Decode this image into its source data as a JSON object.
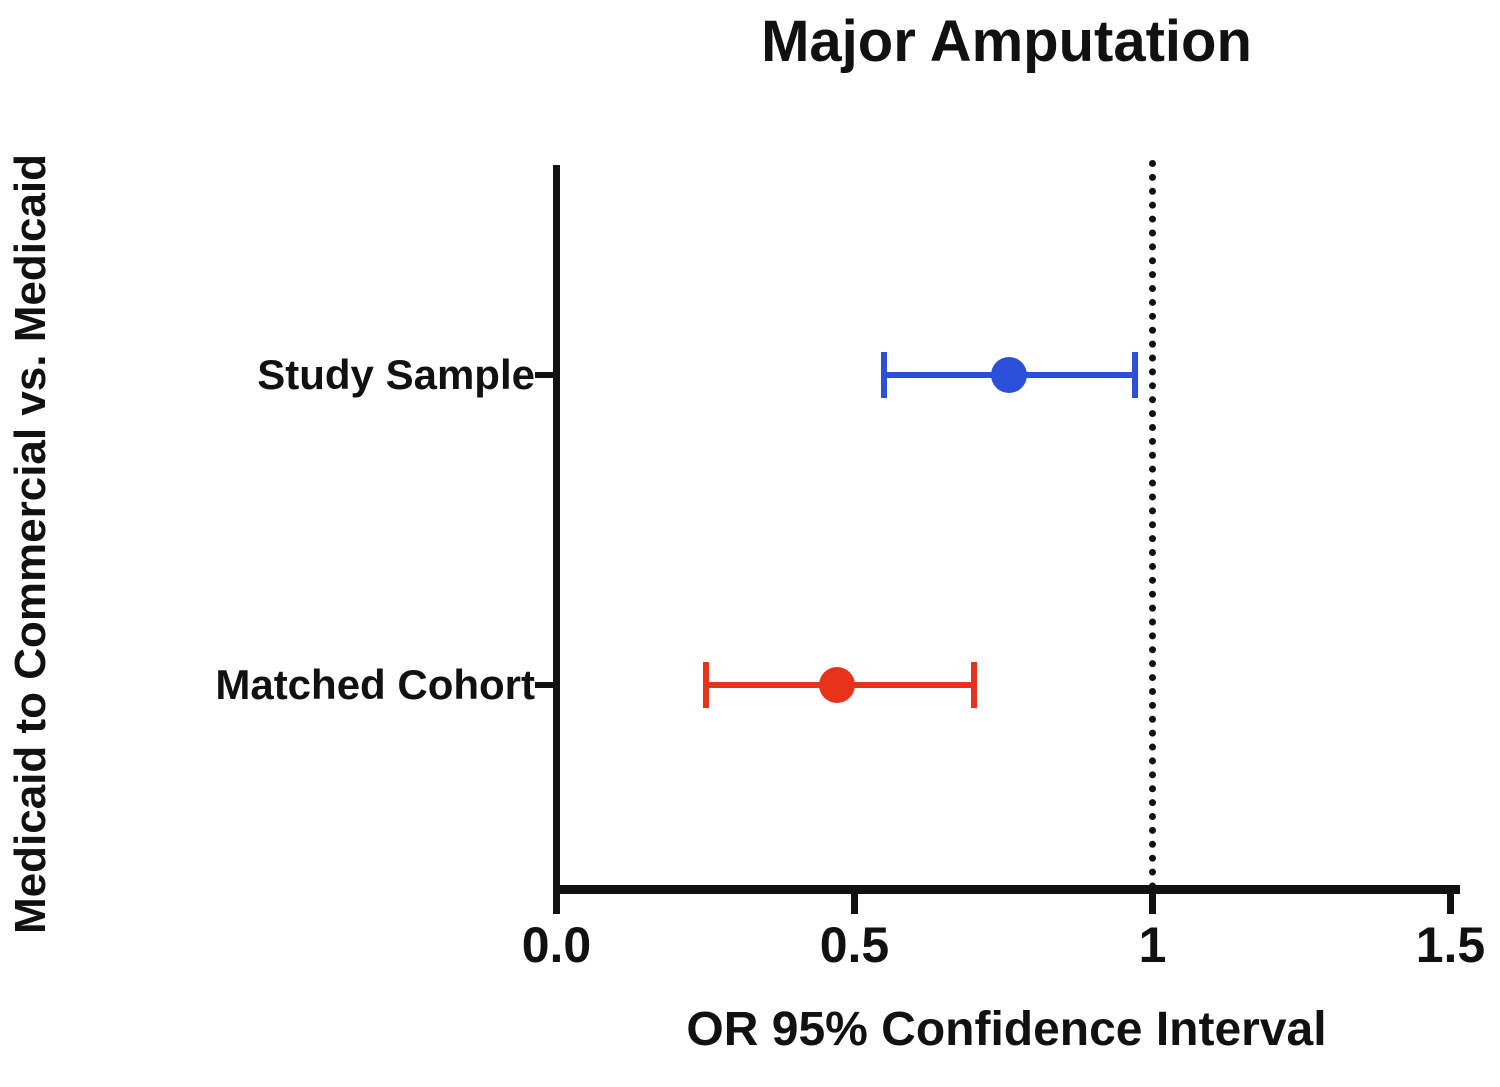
{
  "chart_data": {
    "type": "scatter",
    "subtype": "forest-plot",
    "title": "Major Amputation",
    "xlabel": "OR 95% Confidence Interval",
    "ylabel": "Medicaid to Commercial vs. Medicaid",
    "xlim": [
      0,
      1.5
    ],
    "x_ticks": [
      {
        "value": 0,
        "label": "0.0"
      },
      {
        "value": 0.5,
        "label": "0.5"
      },
      {
        "value": 1,
        "label": "1"
      },
      {
        "value": 1.5,
        "label": "1.5"
      }
    ],
    "reference_line": 1,
    "grid": false,
    "legend": "none",
    "rows": [
      {
        "label": "Study Sample",
        "or": 0.76,
        "ci_low": 0.55,
        "ci_high": 0.97,
        "color": "#2a50d9"
      },
      {
        "label": "Matched Cohort",
        "or": 0.47,
        "ci_low": 0.25,
        "ci_high": 0.7,
        "color": "#e8331b"
      }
    ]
  }
}
